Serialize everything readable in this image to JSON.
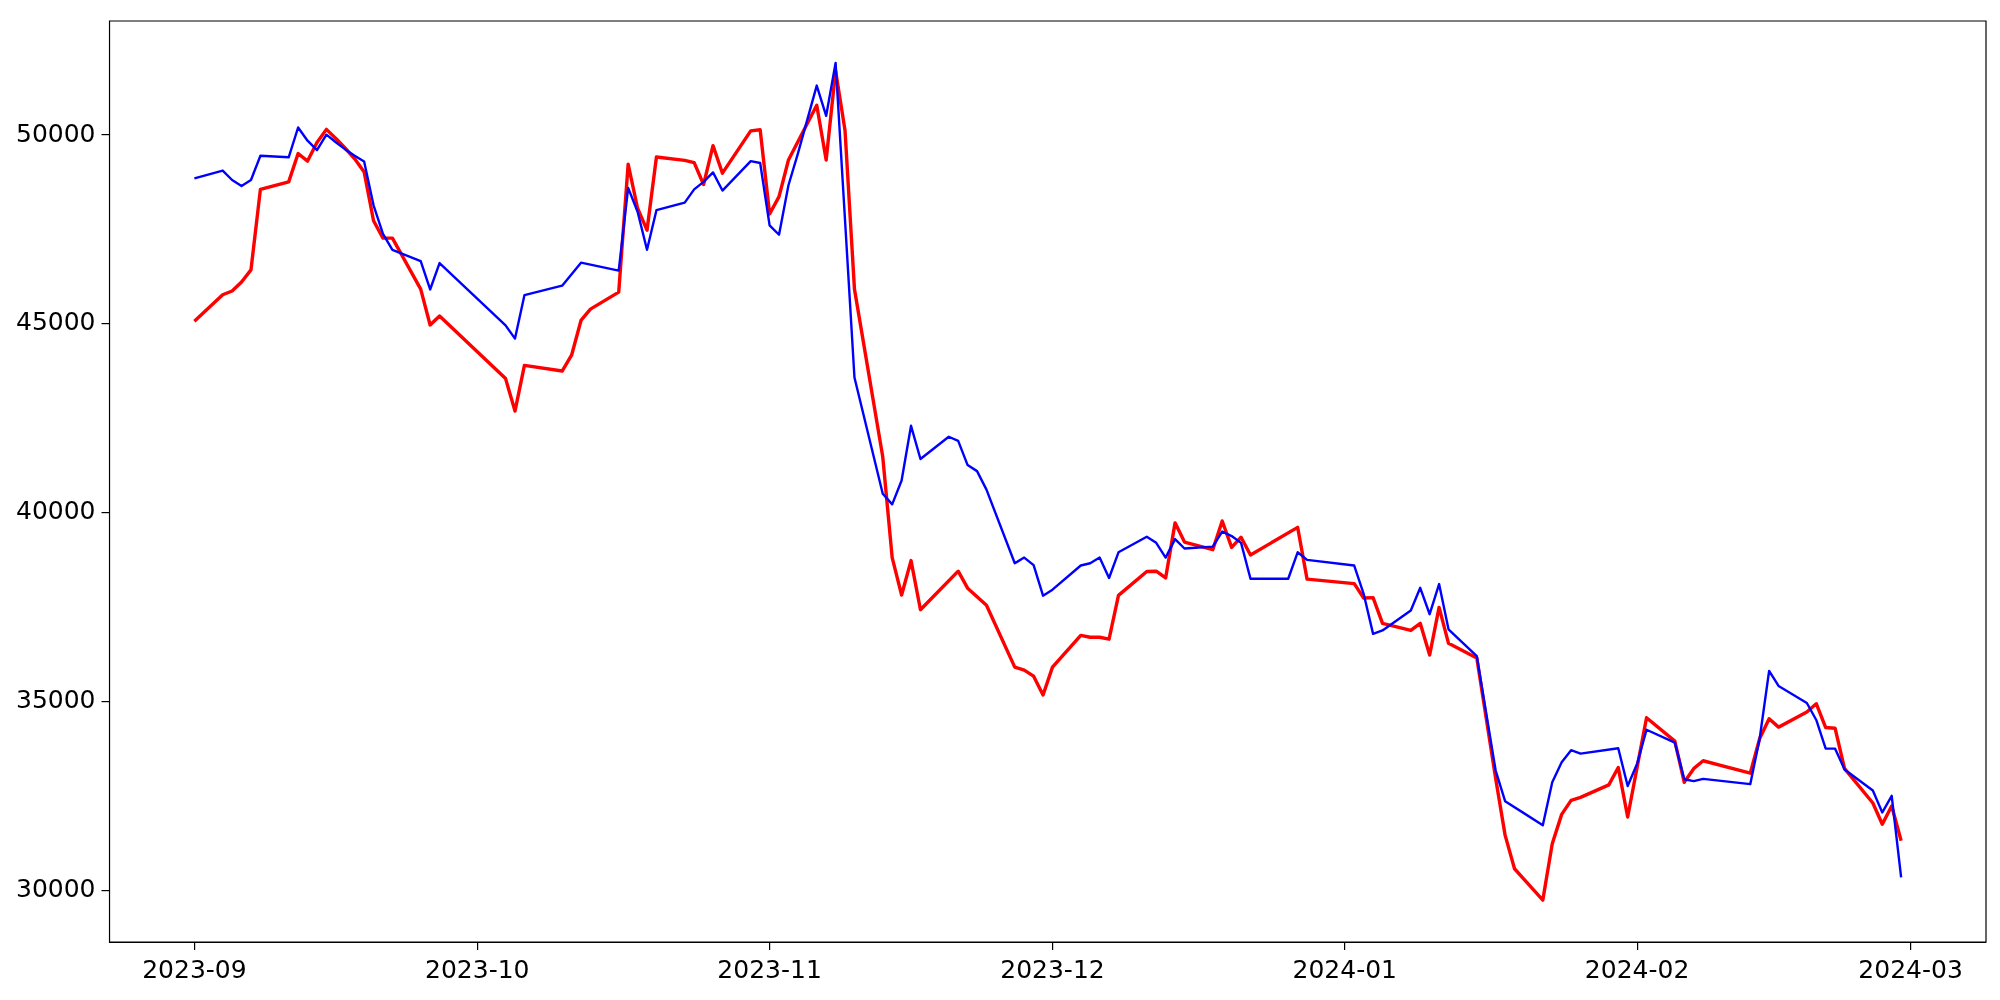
{
  "chart_data": {
    "type": "line",
    "xlim": [
      "2023-08-23",
      "2024-03-09"
    ],
    "ylim": [
      28630,
      53020
    ],
    "xticks": [
      {
        "value": "2023-09-01",
        "label": "2023-09"
      },
      {
        "value": "2023-10-01",
        "label": "2023-10"
      },
      {
        "value": "2023-11-01",
        "label": "2023-11"
      },
      {
        "value": "2023-12-01",
        "label": "2023-12"
      },
      {
        "value": "2024-01-01",
        "label": "2024-01"
      },
      {
        "value": "2024-02-01",
        "label": "2024-02"
      },
      {
        "value": "2024-03-01",
        "label": "2024-03"
      }
    ],
    "yticks": [
      30000,
      35000,
      40000,
      45000,
      50000
    ],
    "grid": false,
    "legend": false,
    "marker": "none",
    "line_style": "solid",
    "series": [
      {
        "color": "#ff0000",
        "x": [
          "2023-09-01",
          "2023-09-04",
          "2023-09-05",
          "2023-09-06",
          "2023-09-07",
          "2023-09-08",
          "2023-09-11",
          "2023-09-12",
          "2023-09-13",
          "2023-09-14",
          "2023-09-15",
          "2023-09-16",
          "2023-09-17",
          "2023-09-18",
          "2023-09-19",
          "2023-09-20",
          "2023-09-21",
          "2023-09-22",
          "2023-09-25",
          "2023-09-26",
          "2023-09-27",
          "2023-10-04",
          "2023-10-05",
          "2023-10-06",
          "2023-10-10",
          "2023-10-11",
          "2023-10-12",
          "2023-10-13",
          "2023-10-16",
          "2023-10-17",
          "2023-10-18",
          "2023-10-19",
          "2023-10-20",
          "2023-10-23",
          "2023-10-24",
          "2023-10-25",
          "2023-10-26",
          "2023-10-27",
          "2023-10-30",
          "2023-10-31",
          "2023-11-01",
          "2023-11-02",
          "2023-11-03",
          "2023-11-06",
          "2023-11-07",
          "2023-11-08",
          "2023-11-09",
          "2023-11-10",
          "2023-11-13",
          "2023-11-14",
          "2023-11-15",
          "2023-11-16",
          "2023-11-17",
          "2023-11-21",
          "2023-11-22",
          "2023-11-24",
          "2023-11-27",
          "2023-11-28",
          "2023-11-29",
          "2023-11-30",
          "2023-12-01",
          "2023-12-04",
          "2023-12-05",
          "2023-12-06",
          "2023-12-07",
          "2023-12-08",
          "2023-12-11",
          "2023-12-12",
          "2023-12-13",
          "2023-12-14",
          "2023-12-15",
          "2023-12-18",
          "2023-12-19",
          "2023-12-20",
          "2023-12-21",
          "2023-12-22",
          "2023-12-27",
          "2023-12-28",
          "2024-01-02",
          "2024-01-03",
          "2024-01-04",
          "2024-01-05",
          "2024-01-08",
          "2024-01-09",
          "2024-01-10",
          "2024-01-11",
          "2024-01-12",
          "2024-01-15",
          "2024-01-17",
          "2024-01-18",
          "2024-01-19",
          "2024-01-22",
          "2024-01-23",
          "2024-01-24",
          "2024-01-25",
          "2024-01-26",
          "2024-01-29",
          "2024-01-30",
          "2024-01-31",
          "2024-02-02",
          "2024-02-05",
          "2024-02-06",
          "2024-02-07",
          "2024-02-08",
          "2024-02-13",
          "2024-02-14",
          "2024-02-15",
          "2024-02-16",
          "2024-02-19",
          "2024-02-20",
          "2024-02-21",
          "2024-02-22",
          "2024-02-23",
          "2024-02-26",
          "2024-02-27",
          "2024-02-28",
          "2024-02-29"
        ],
        "values": [
          45070,
          45770,
          45870,
          46110,
          46430,
          48560,
          48760,
          49510,
          49310,
          49800,
          50150,
          49910,
          49650,
          49370,
          49020,
          47730,
          47270,
          47270,
          45920,
          44970,
          45210,
          43550,
          42690,
          43900,
          43750,
          44170,
          45090,
          45390,
          45840,
          49230,
          48060,
          47480,
          49420,
          49330,
          49270,
          48690,
          49720,
          48990,
          50110,
          50140,
          47910,
          48370,
          49340,
          50790,
          49340,
          51700,
          50120,
          45920,
          41480,
          38810,
          37820,
          38730,
          37430,
          38450,
          38000,
          37550,
          35910,
          35830,
          35670,
          35170,
          35910,
          36750,
          36700,
          36700,
          36650,
          37810,
          38440,
          38450,
          38270,
          39730,
          39220,
          39020,
          39780,
          39080,
          39350,
          38880,
          39610,
          38240,
          38120,
          37740,
          37750,
          37070,
          36880,
          37070,
          36230,
          37490,
          36540,
          36150,
          32960,
          31460,
          30570,
          29740,
          31230,
          32010,
          32380,
          32460,
          32790,
          33250,
          31940,
          34570,
          33950,
          32860,
          33220,
          33430,
          33100,
          34020,
          34540,
          34320,
          34720,
          34940,
          34310,
          34290,
          33220,
          32310,
          31750,
          32230,
          31310
        ]
      },
      {
        "color": "#0000ff",
        "x": [
          "2023-09-01",
          "2023-09-04",
          "2023-09-05",
          "2023-09-06",
          "2023-09-07",
          "2023-09-08",
          "2023-09-11",
          "2023-09-12",
          "2023-09-13",
          "2023-09-14",
          "2023-09-15",
          "2023-09-16",
          "2023-09-17",
          "2023-09-18",
          "2023-09-19",
          "2023-09-20",
          "2023-09-21",
          "2023-09-22",
          "2023-09-25",
          "2023-09-26",
          "2023-09-27",
          "2023-10-04",
          "2023-10-05",
          "2023-10-06",
          "2023-10-10",
          "2023-10-12",
          "2023-10-16",
          "2023-10-17",
          "2023-10-18",
          "2023-10-19",
          "2023-10-20",
          "2023-10-23",
          "2023-10-24",
          "2023-10-25",
          "2023-10-26",
          "2023-10-27",
          "2023-10-30",
          "2023-10-31",
          "2023-11-01",
          "2023-11-02",
          "2023-11-03",
          "2023-11-04",
          "2023-11-06",
          "2023-11-07",
          "2023-11-08",
          "2023-11-10",
          "2023-11-13",
          "2023-11-14",
          "2023-11-15",
          "2023-11-16",
          "2023-11-17",
          "2023-11-20",
          "2023-11-21",
          "2023-11-22",
          "2023-11-23",
          "2023-11-24",
          "2023-11-27",
          "2023-11-28",
          "2023-11-29",
          "2023-11-30",
          "2023-12-01",
          "2023-12-04",
          "2023-12-05",
          "2023-12-06",
          "2023-12-07",
          "2023-12-08",
          "2023-12-11",
          "2023-12-12",
          "2023-12-13",
          "2023-12-14",
          "2023-12-15",
          "2023-12-18",
          "2023-12-19",
          "2023-12-20",
          "2023-12-21",
          "2023-12-22",
          "2023-12-26",
          "2023-12-27",
          "2023-12-28",
          "2024-01-02",
          "2024-01-03",
          "2024-01-04",
          "2024-01-05",
          "2024-01-08",
          "2024-01-09",
          "2024-01-10",
          "2024-01-11",
          "2024-01-12",
          "2024-01-15",
          "2024-01-17",
          "2024-01-18",
          "2024-01-22",
          "2024-01-23",
          "2024-01-24",
          "2024-01-25",
          "2024-01-26",
          "2024-01-30",
          "2024-01-31",
          "2024-02-01",
          "2024-02-02",
          "2024-02-05",
          "2024-02-06",
          "2024-02-07",
          "2024-02-08",
          "2024-02-13",
          "2024-02-14",
          "2024-02-15",
          "2024-02-16",
          "2024-02-19",
          "2024-02-20",
          "2024-02-21",
          "2024-02-22",
          "2024-02-23",
          "2024-02-26",
          "2024-02-27",
          "2024-02-28",
          "2024-02-29"
        ],
        "values": [
          48850,
          49060,
          48810,
          48650,
          48810,
          49450,
          49410,
          50200,
          49850,
          49600,
          50010,
          49810,
          49620,
          49450,
          49300,
          48140,
          47380,
          46960,
          46660,
          45910,
          46610,
          44960,
          44610,
          45760,
          46010,
          46620,
          46410,
          48600,
          47970,
          46960,
          48010,
          48210,
          48560,
          48760,
          49010,
          48530,
          49310,
          49260,
          47610,
          47360,
          48670,
          49510,
          51310,
          50510,
          51910,
          43580,
          40500,
          40220,
          40850,
          42300,
          41420,
          42010,
          41900,
          41260,
          41100,
          40610,
          38660,
          38810,
          38610,
          37800,
          37960,
          38600,
          38660,
          38810,
          38270,
          38950,
          39360,
          39200,
          38810,
          39300,
          39050,
          39100,
          39500,
          39380,
          39200,
          38250,
          38250,
          38950,
          38750,
          38600,
          37850,
          36790,
          36880,
          37410,
          38010,
          37310,
          38110,
          36910,
          36200,
          33170,
          32360,
          31720,
          32860,
          33390,
          33710,
          33620,
          33760,
          32760,
          33350,
          34250,
          33910,
          32940,
          32890,
          32950,
          32810,
          34020,
          35810,
          35410,
          34960,
          34510,
          33750,
          33750,
          33200,
          32640,
          32060,
          32500,
          30340
        ]
      }
    ]
  }
}
